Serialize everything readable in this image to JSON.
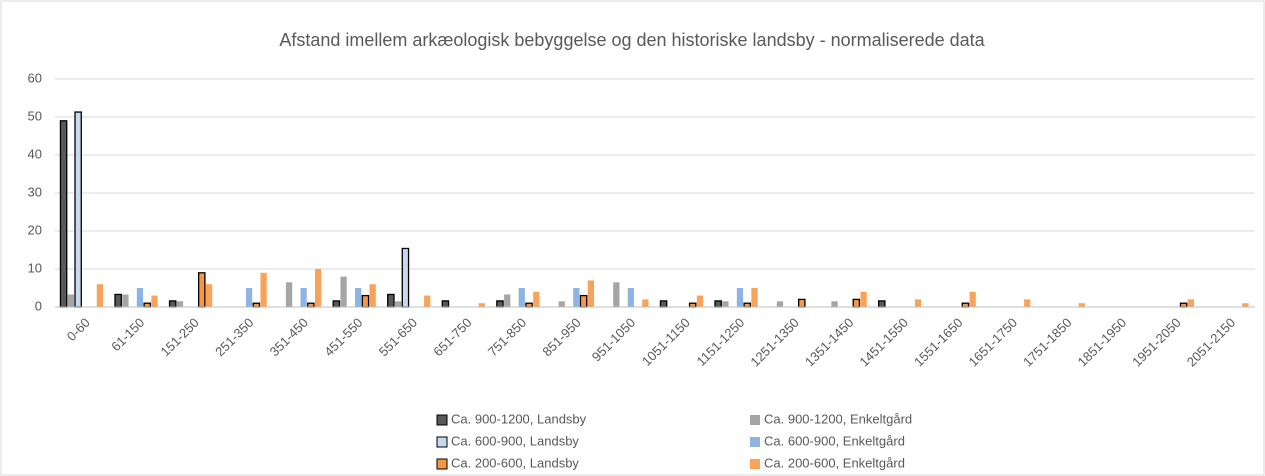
{
  "chart_data": {
    "type": "bar",
    "title": "Afstand imellem arkæologisk bebyggelse og den historiske landsby - normaliserede data",
    "categories": [
      "0-60",
      "61-150",
      "151-250",
      "251-350",
      "351-450",
      "451-550",
      "551-650",
      "651-750",
      "751-850",
      "851-950",
      "951-1050",
      "1051-1150",
      "1151-1250",
      "1251-1350",
      "1351-1450",
      "1451-1550",
      "1551-1650",
      "1651-1750",
      "1751-1850",
      "1851-1950",
      "1951-2050",
      "2051-2150"
    ],
    "series": [
      {
        "name": "Ca. 900-1200, Landsby",
        "color": "#595959",
        "edgecolor": "#000000",
        "values": [
          49,
          3.3,
          1.6,
          0,
          0,
          1.6,
          3.3,
          1.6,
          1.6,
          0,
          0,
          1.6,
          1.6,
          0,
          0,
          1.6,
          0,
          0,
          0,
          0,
          0,
          0
        ]
      },
      {
        "name": "Ca. 900-1200, Enkeltgård",
        "color": "#a5a5a5",
        "values": [
          3.3,
          3.3,
          1.5,
          0,
          6.5,
          8,
          1.5,
          0,
          3.3,
          1.5,
          6.5,
          0,
          1.5,
          1.5,
          1.5,
          0,
          0,
          0,
          0,
          0,
          0,
          0
        ]
      },
      {
        "name": "Ca. 600-900, Landsby",
        "color": "#c6d9f1",
        "edgecolor": "#000000",
        "values": [
          51.3,
          0,
          0,
          0,
          0,
          0,
          15.4,
          0,
          0,
          0,
          0,
          0,
          0,
          0,
          0,
          0,
          0,
          0,
          0,
          0,
          0,
          0
        ]
      },
      {
        "name": "Ca. 600-900, Enkeltgård",
        "color": "#8eb4e3",
        "values": [
          0,
          5,
          0,
          5,
          5,
          5,
          0,
          0,
          5,
          5,
          5,
          0,
          5,
          0,
          0,
          0,
          0,
          0,
          0,
          0,
          0,
          0
        ]
      },
      {
        "name": "Ca. 200-600, Landsby",
        "color": "#f79646",
        "edgecolor": "#000000",
        "values": [
          0,
          1,
          9,
          1,
          1,
          3,
          0,
          0,
          1,
          3,
          0,
          1,
          1,
          2,
          2,
          0,
          1,
          0,
          0,
          0,
          1,
          0
        ]
      },
      {
        "name": "Ca. 200-600, Enkeltgård",
        "color": "#f9a35a",
        "values": [
          6,
          3,
          6,
          9,
          10,
          6,
          3,
          1,
          4,
          7,
          2,
          3,
          5,
          0,
          4,
          2,
          4,
          2,
          1,
          0,
          2,
          1
        ]
      }
    ],
    "ylim": [
      0,
      60
    ],
    "yticks": [
      0,
      10,
      20,
      30,
      40,
      50,
      60
    ],
    "grid": true
  }
}
